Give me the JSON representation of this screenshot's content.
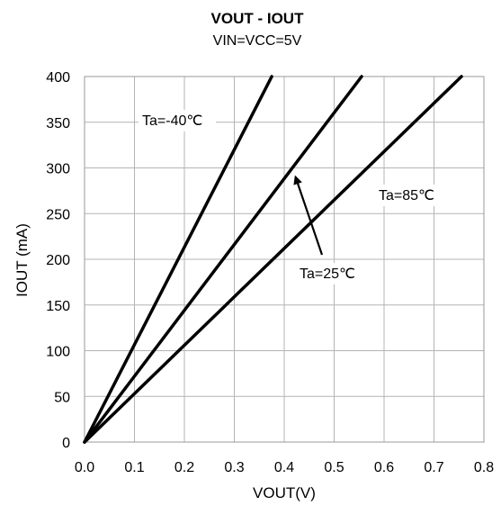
{
  "chart_data": {
    "type": "line",
    "title": "VOUT - IOUT",
    "subtitle": "VIN=VCC=5V",
    "xlabel": "VOUT(V)",
    "ylabel": "IOUT (mA)",
    "xlim": [
      0,
      0.8
    ],
    "ylim": [
      0,
      400
    ],
    "xticks": [
      "0.0",
      "0.1",
      "0.2",
      "0.3",
      "0.4",
      "0.5",
      "0.6",
      "0.7",
      "0.8"
    ],
    "yticks": [
      "0",
      "50",
      "100",
      "150",
      "200",
      "250",
      "300",
      "350",
      "400"
    ],
    "grid": true,
    "series": [
      {
        "name": "Ta=-40℃",
        "x": [
          0,
          0.375
        ],
        "y": [
          0,
          400
        ]
      },
      {
        "name": "Ta=25℃",
        "x": [
          0,
          0.555
        ],
        "y": [
          0,
          400
        ]
      },
      {
        "name": "Ta=85℃",
        "x": [
          0,
          0.755
        ],
        "y": [
          0,
          400
        ]
      }
    ],
    "annotations": [
      {
        "text": "Ta=-40℃",
        "series": 0
      },
      {
        "text": "Ta=25℃",
        "series": 1,
        "arrow": true,
        "arrow_target": [
          0.41,
          300
        ]
      },
      {
        "text": "Ta=85℃",
        "series": 2
      }
    ]
  }
}
